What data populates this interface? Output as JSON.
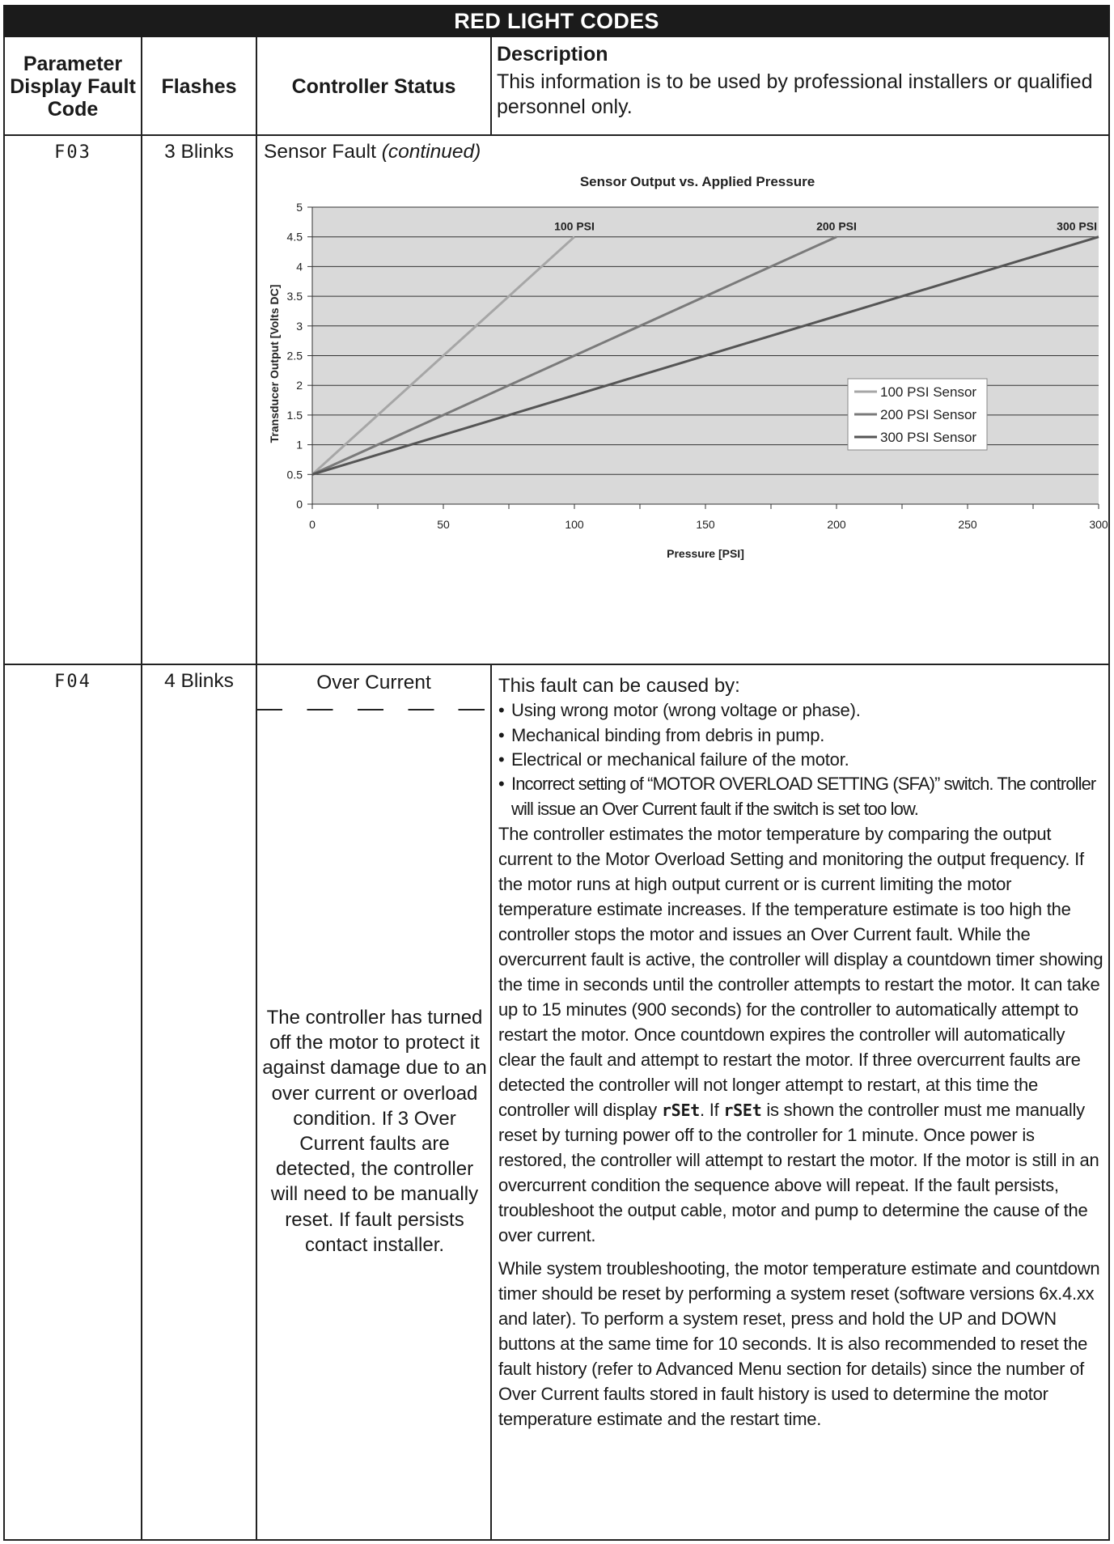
{
  "table_title": "RED LIGHT CODES",
  "headers": {
    "code": "Parameter Display Fault Code",
    "flashes": "Flashes",
    "status": "Controller Status",
    "description_title": "Description",
    "description_body": "This information is to be used by professional installers or qualified personnel only."
  },
  "row_f03": {
    "code": "F03",
    "flashes": "3 Blinks",
    "status": "Sensor Fault",
    "status_suffix": "(continued)"
  },
  "chart_data": {
    "type": "line",
    "title": "Sensor Output vs. Applied Pressure",
    "xlabel": "Pressure [PSI]",
    "ylabel": "Transducer Output [Volts DC]",
    "xlim": [
      0,
      300
    ],
    "ylim": [
      0,
      5
    ],
    "x_ticks": [
      "0",
      "50",
      "100",
      "150",
      "200",
      "250",
      "300"
    ],
    "y_ticks": [
      "0",
      "0.5",
      "1",
      "1.5",
      "2",
      "2.5",
      "3",
      "3.5",
      "4",
      "4.5",
      "5"
    ],
    "grid": true,
    "legend_position": "right-middle",
    "series": [
      {
        "name": "100 PSI Sensor",
        "end_label": "100 PSI",
        "color": "#a6a6a6",
        "x": [
          0,
          100
        ],
        "y": [
          0.5,
          4.5
        ]
      },
      {
        "name": "200 PSI Sensor",
        "end_label": "200 PSI",
        "color": "#7a7a7a",
        "x": [
          0,
          200
        ],
        "y": [
          0.5,
          4.5
        ]
      },
      {
        "name": "300 PSI Sensor",
        "end_label": "300 PSI",
        "color": "#555555",
        "x": [
          0,
          300
        ],
        "y": [
          0.5,
          4.5
        ]
      }
    ]
  },
  "row_f04": {
    "code": "F04",
    "flashes": "4 Blinks",
    "status": "Over Current",
    "status_detail": "The controller has turned off the motor to protect it against damage due to an over current or overload condition. If 3 Over Current faults are detected, the controller will need to be manually reset. If fault persists contact installer.",
    "cause_intro": "This fault can be caused by:",
    "causes": [
      "Using wrong motor (wrong voltage or phase).",
      "Mechanical binding from debris in pump.",
      "Electrical or mechanical failure of the motor.",
      "Incorrect setting of “MOTOR OVERLOAD SETTING (SFA)” switch. The controller will issue an Over Current fault if the switch is set too low."
    ],
    "para1_a": "The controller estimates the motor temperature by comparing the output current to the Motor Overload Setting and monitoring the output frequency. If the motor runs at high output current or is current limiting the motor temperature estimate increases. If the temperature estimate is too high the controller stops the motor and issues an Over Current fault. While the overcurrent fault is active, the controller will display a countdown timer showing the time in seconds until the controller attempts to restart the motor. It can take up to 15 minutes (900 seconds) for the controller to automatically attempt to restart the motor. Once countdown expires the controller will automatically clear the fault and attempt to restart the motor. If three overcurrent faults are detected the controller will not longer attempt to restart, at this time the controller will display ",
    "reset_code": "rSEt",
    "para1_b": ". If ",
    "para1_c": " is shown the controller must me manually reset by turning power off to the controller for 1 minute. Once power is restored, the controller will attempt to restart the motor. If the motor is still in an overcurrent condition the sequence above will repeat. If the fault persists, troubleshoot the output cable, motor and pump to determine the cause of the over current.",
    "para2": "While system troubleshooting, the motor temperature estimate and countdown timer should be reset by performing a system reset (software versions 6x.4.xx and later). To perform a system reset, press and hold the UP and DOWN buttons at the same time for 10 seconds. It is also recommended to reset the fault history (refer to Advanced Menu section for details) since the number of Over Current faults stored in fault history is used to determine the motor temperature estimate and the restart time."
  }
}
